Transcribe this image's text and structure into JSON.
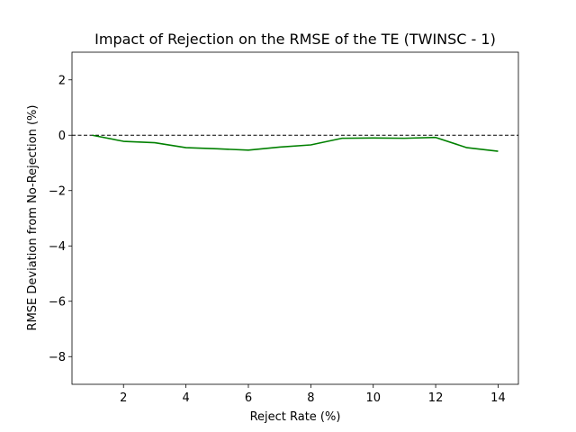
{
  "chart_data": {
    "type": "line",
    "title": "Impact of Rejection on the RMSE of the TE (TWINSC - 1)",
    "xlabel": "Reject Rate (%)",
    "ylabel": "RMSE Deviation from No-Rejection (%)",
    "xlim": [
      0.35,
      14.65
    ],
    "ylim": [
      -9,
      3
    ],
    "xticks": [
      2,
      4,
      6,
      8,
      10,
      12,
      14
    ],
    "xtick_labels": [
      "2",
      "4",
      "6",
      "8",
      "10",
      "12",
      "14"
    ],
    "yticks": [
      2,
      0,
      -2,
      -4,
      -6,
      -8
    ],
    "ytick_labels": [
      "2",
      "0",
      "−2",
      "−4",
      "−6",
      "−8"
    ],
    "grid": false,
    "legend": "none",
    "reference_line": {
      "y": 0,
      "style": "dashed",
      "color": "#000000"
    },
    "series": [
      {
        "color": "#008000",
        "x": [
          1,
          2,
          3,
          4,
          5,
          6,
          7,
          8,
          9,
          10,
          11,
          12,
          13,
          14
        ],
        "y": [
          0.0,
          -0.22,
          -0.27,
          -0.45,
          -0.49,
          -0.54,
          -0.43,
          -0.35,
          -0.11,
          -0.1,
          -0.11,
          -0.08,
          -0.45,
          -0.58
        ]
      }
    ]
  }
}
